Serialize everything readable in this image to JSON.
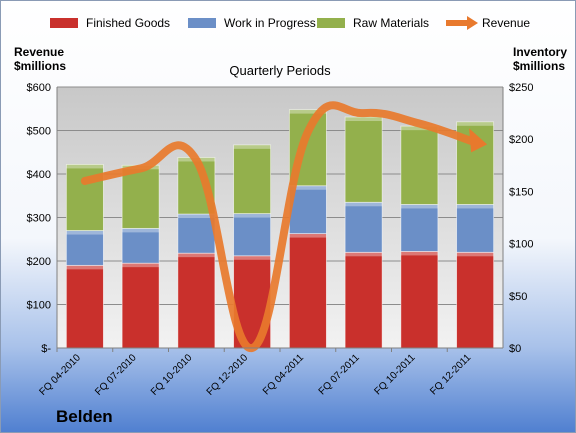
{
  "chart_data": {
    "type": "bar",
    "company": "Belden",
    "subtitle": "Quarterly Periods",
    "left_axis": {
      "label_line1": "Revenue",
      "label_line2": "$millions",
      "ylim": [
        0,
        600
      ],
      "ticks": [
        "$-",
        "$100",
        "$200",
        "$300",
        "$400",
        "$500",
        "$600"
      ]
    },
    "right_axis": {
      "label_line1": "Inventory",
      "label_line2": "$millions",
      "ylim": [
        0,
        250
      ],
      "ticks": [
        "$0",
        "$50",
        "$100",
        "$150",
        "$200",
        "$250"
      ]
    },
    "categories": [
      "FQ 04-2010",
      "FQ 07-2010",
      "FQ 10-2010",
      "FQ 12-2010",
      "FQ 04-2011",
      "FQ 07-2011",
      "FQ 10-2011",
      "FQ 12-2011"
    ],
    "series": [
      {
        "name": "Finished Goods",
        "kind": "bar",
        "axis": "left",
        "color": "#c9302c",
        "values": [
          190,
          195,
          218,
          212,
          263,
          220,
          222,
          220
        ]
      },
      {
        "name": "Work in Progress",
        "kind": "bar",
        "axis": "left",
        "color": "#6b8fc7",
        "values": [
          80,
          80,
          90,
          97,
          110,
          115,
          108,
          110
        ]
      },
      {
        "name": "Raw Materials",
        "kind": "bar",
        "axis": "left",
        "color": "#93b04c",
        "values": [
          152,
          145,
          130,
          158,
          175,
          196,
          180,
          190
        ]
      },
      {
        "name": "Revenue",
        "kind": "line",
        "axis": "right",
        "color": "#e8792d",
        "values": [
          160,
          172,
          180,
          0,
          207,
          225,
          215,
          197
        ]
      }
    ],
    "grid": true,
    "legend": "top"
  }
}
